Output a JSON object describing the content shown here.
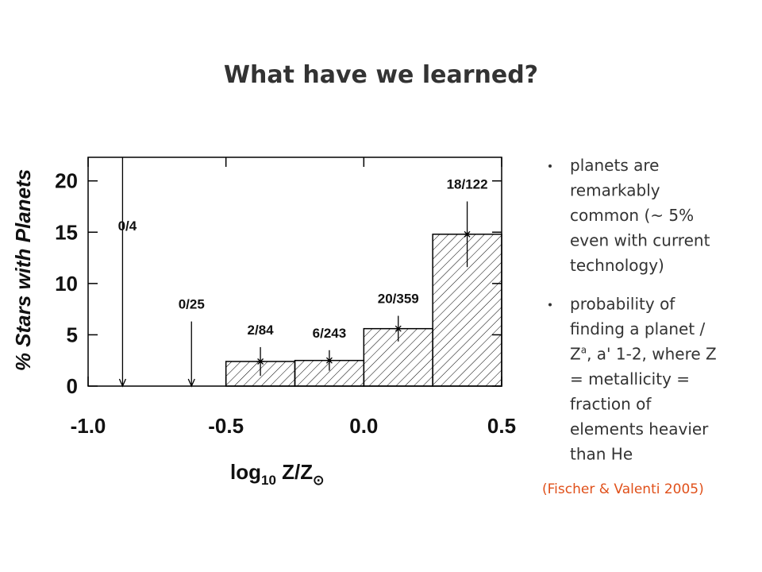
{
  "header": {
    "title": "What have we learned?"
  },
  "chart_data": {
    "type": "histogram",
    "ylabel": "% Stars with Planets",
    "xlabel": {
      "base": "log",
      "sub": "10",
      "rest": " Z/Z",
      "sub2": "⊙"
    },
    "bins": [
      -1.0,
      -0.75,
      -0.5,
      -0.25,
      0.0,
      0.25,
      0.5
    ],
    "values": [
      0,
      0,
      2.4,
      2.5,
      5.6,
      14.8
    ],
    "errors": [
      null,
      null,
      1.4,
      1.0,
      1.25,
      3.2
    ],
    "upper_limits": [
      22.3,
      6.3,
      null,
      null,
      null,
      null
    ],
    "bin_labels": [
      "0/4",
      "0/25",
      "2/84",
      "6/243",
      "20/359",
      "18/122"
    ],
    "xlim": [
      -1.0,
      0.5
    ],
    "xticks": [
      {
        "value": -1.0,
        "label": "-1.0"
      },
      {
        "value": -0.5,
        "label": "-0.5"
      },
      {
        "value": 0.0,
        "label": "0.0"
      },
      {
        "value": 0.5,
        "label": "0.5"
      }
    ],
    "ylim": [
      0,
      22.3
    ],
    "yticks": [
      0,
      5,
      10,
      15,
      20
    ],
    "hatch": true,
    "color": "#000000"
  },
  "bullets": [
    {
      "lines": [
        "planets are",
        "remarkably",
        "common (~ 5%",
        "even with current",
        "technology)"
      ]
    },
    {
      "lines": [
        "probability of",
        "finding a planet /",
        {
          "text": "Z",
          "sup": "a",
          "rest": ", a' 1-2, where Z"
        },
        "= metallicity =",
        "fraction of",
        "elements heavier",
        "than He"
      ]
    }
  ],
  "citation": "(Fischer & Valenti 2005)"
}
